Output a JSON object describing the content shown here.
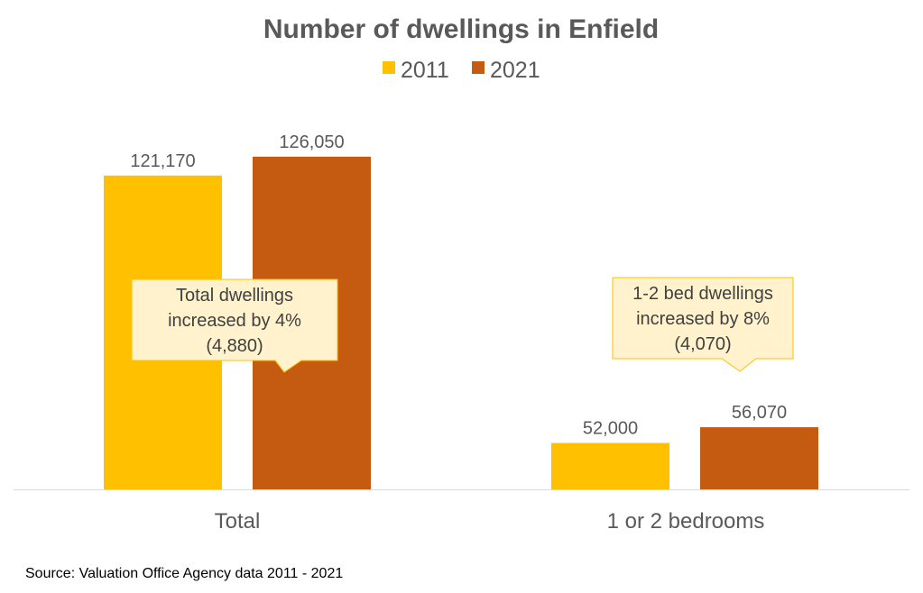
{
  "chart_data": {
    "type": "bar",
    "title": "Number of dwellings in Enfield",
    "categories": [
      "Total",
      "1 or 2 bedrooms"
    ],
    "series": [
      {
        "name": "2011",
        "color": "#FFC000",
        "values": [
          121170,
          52000
        ],
        "labels": [
          "121,170",
          "52,000"
        ]
      },
      {
        "name": "2021",
        "color": "#C55A11",
        "values": [
          126050,
          56070
        ],
        "labels": [
          "126,050",
          "56,070"
        ]
      }
    ],
    "ylim": [
      40000,
      140000
    ],
    "grid": false,
    "legend": "top-center",
    "xlabel": "",
    "ylabel": "",
    "annotations": [
      {
        "lines": [
          "Total dwellings",
          "increased by 4%",
          "(4,880)"
        ]
      },
      {
        "lines": [
          "1-2 bed dwellings",
          "increased by 8%",
          "(4,070)"
        ]
      }
    ],
    "source": "Source: Valuation Office Agency  data 2011  - 2021"
  }
}
